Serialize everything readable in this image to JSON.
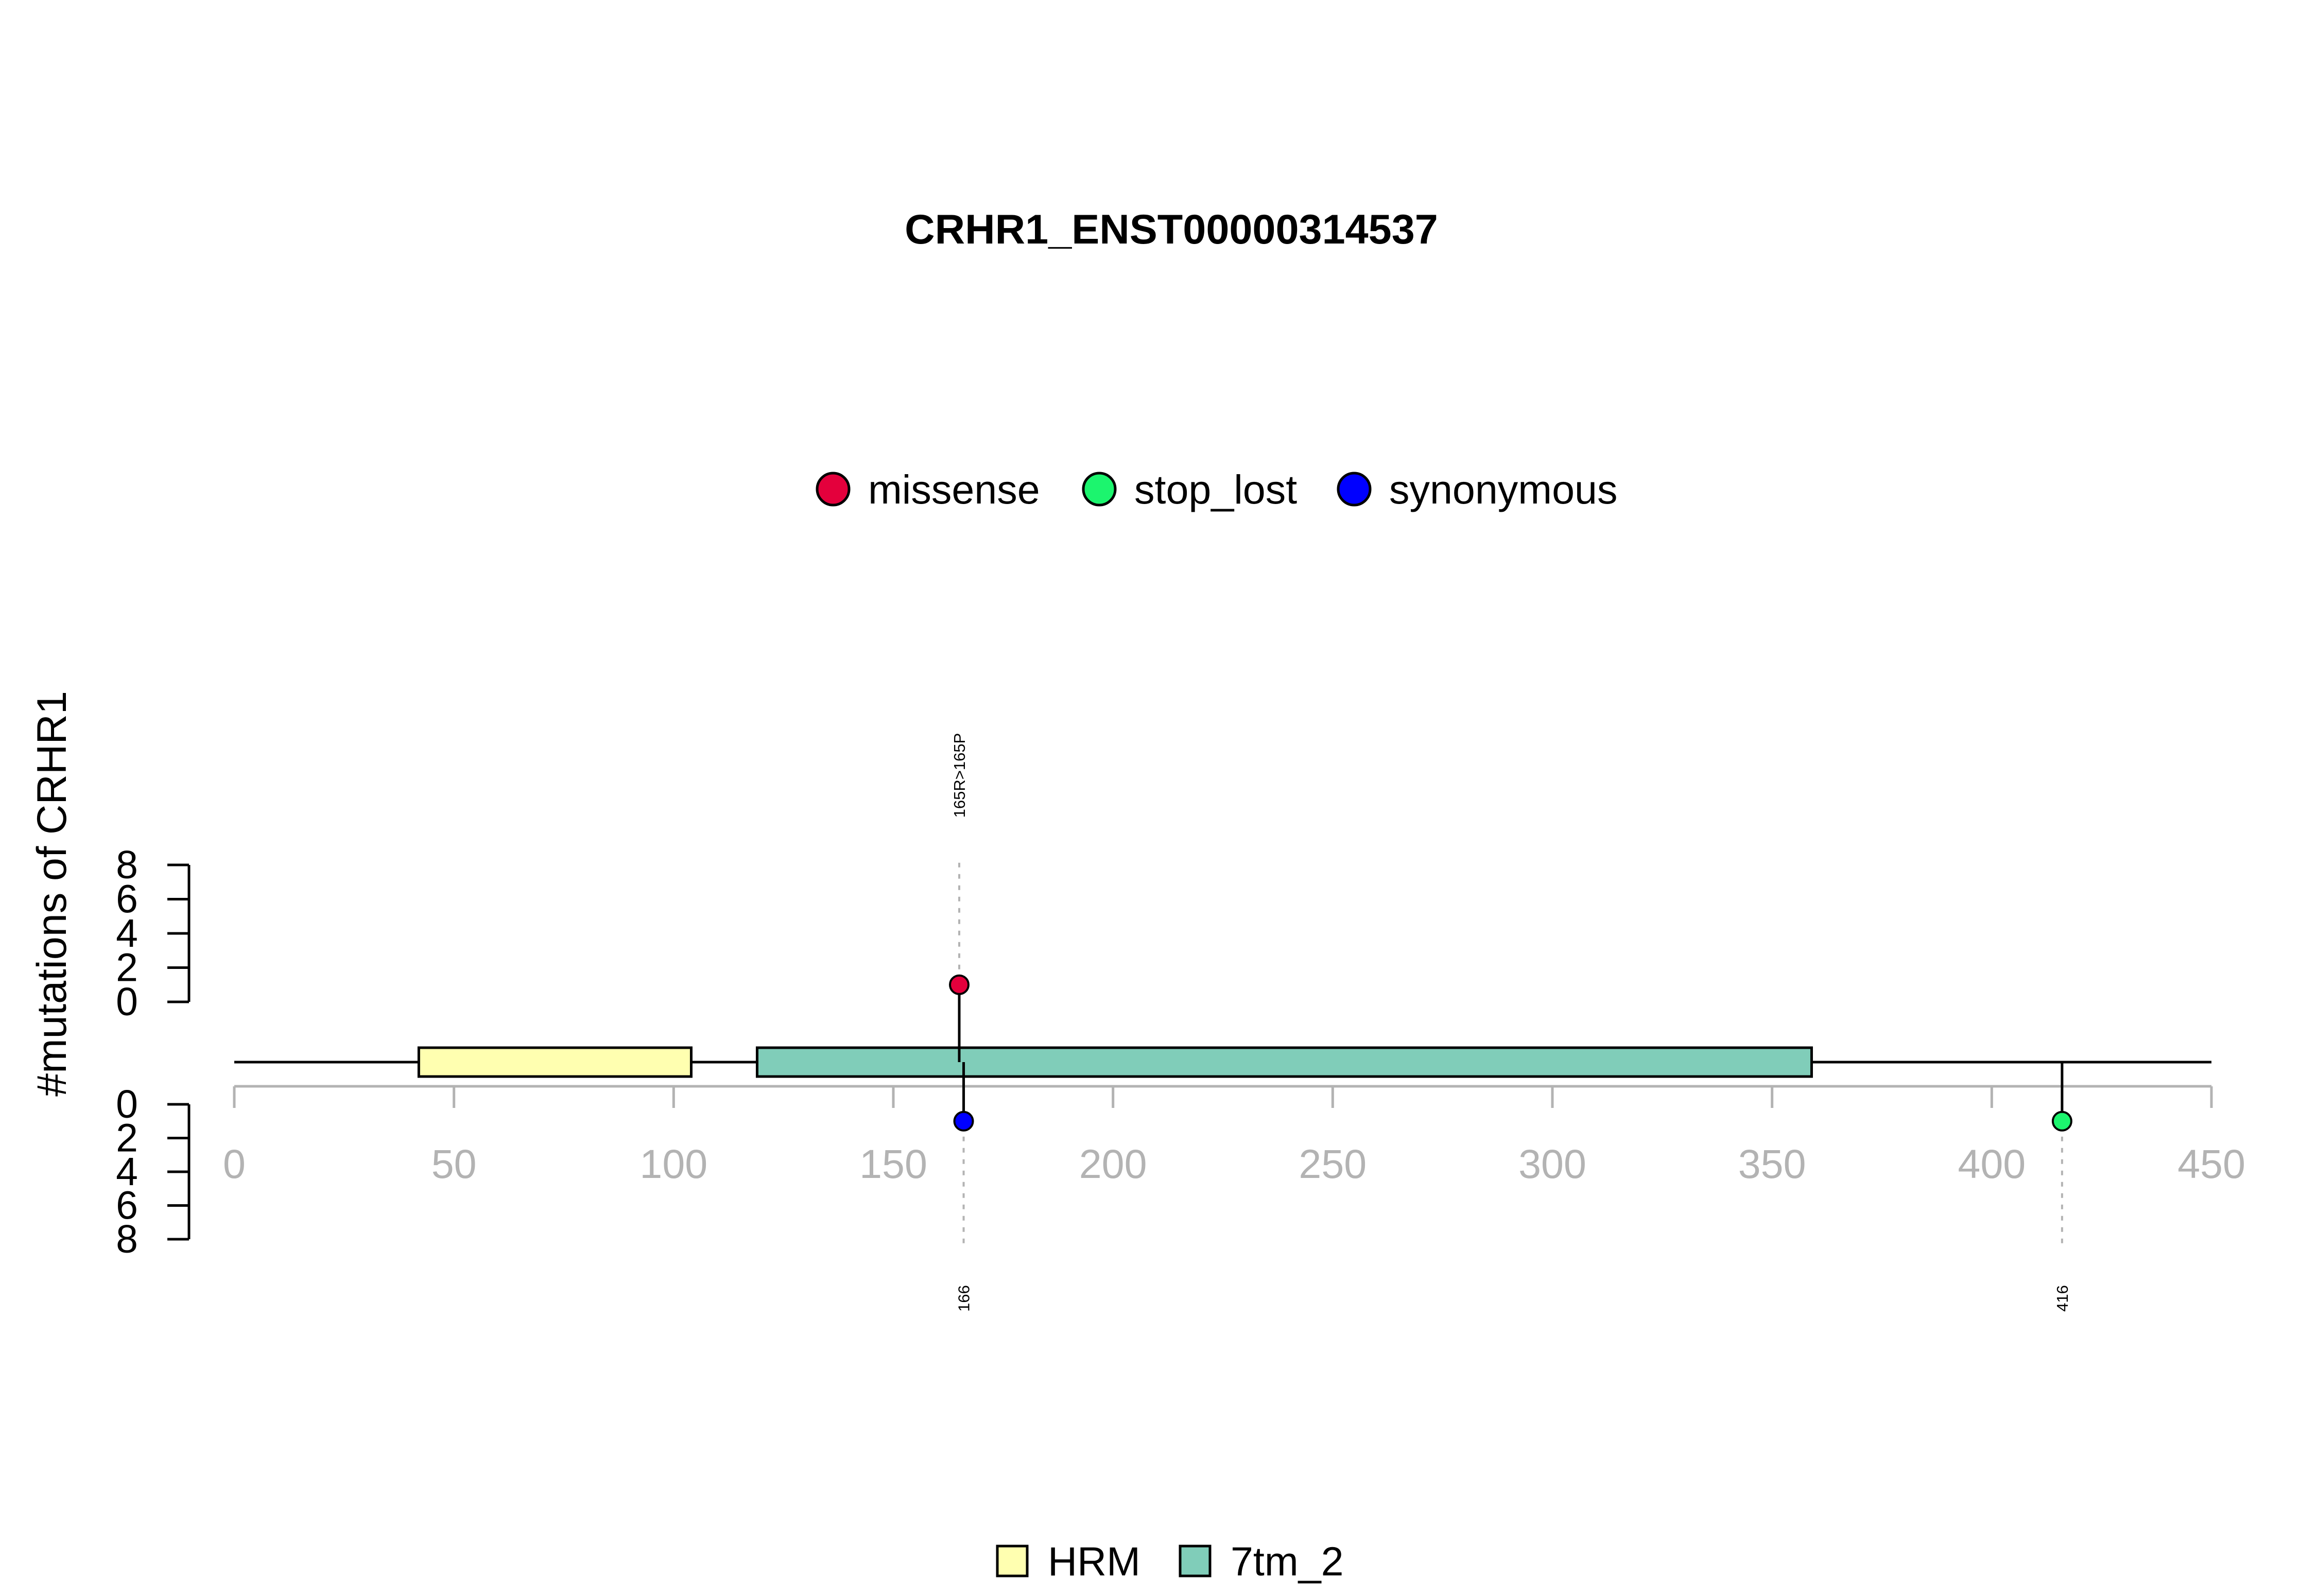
{
  "chart_data": {
    "type": "lollipop",
    "title": "CRHR1_ENST00000314537",
    "ylabel": "#mutations of CRHR1",
    "xlim": [
      0,
      450
    ],
    "x_ticks": [
      0,
      50,
      100,
      150,
      200,
      250,
      300,
      350,
      400,
      450
    ],
    "y_ticks_top": [
      0,
      2,
      4,
      6,
      8
    ],
    "y_ticks_bottom": [
      0,
      2,
      4,
      6,
      8
    ],
    "protein_length": 450,
    "legend_mutation_types": [
      {
        "name": "missense",
        "color": "#E4003C"
      },
      {
        "name": "stop_lost",
        "color": "#1CF56E"
      },
      {
        "name": "synonymous",
        "color": "#0000FF"
      }
    ],
    "legend_domains": [
      {
        "name": "HRM",
        "color": "#FFFFB0"
      },
      {
        "name": "7tm_2",
        "color": "#80CDB9"
      }
    ],
    "domains": [
      {
        "name": "HRM",
        "start": 42,
        "end": 104,
        "color": "#FFFFB0"
      },
      {
        "name": "7tm_2",
        "start": 119,
        "end": 359,
        "color": "#80CDB9"
      }
    ],
    "mutations": [
      {
        "position": 165,
        "count": 1,
        "type": "missense",
        "side": "top",
        "label": "165R>165P",
        "color": "#E4003C"
      },
      {
        "position": 166,
        "count": 1,
        "type": "synonymous",
        "side": "bottom",
        "label": "166",
        "color": "#0000FF"
      },
      {
        "position": 416,
        "count": 1,
        "type": "stop_lost",
        "side": "bottom",
        "label": "416",
        "color": "#1CF56E"
      }
    ]
  }
}
